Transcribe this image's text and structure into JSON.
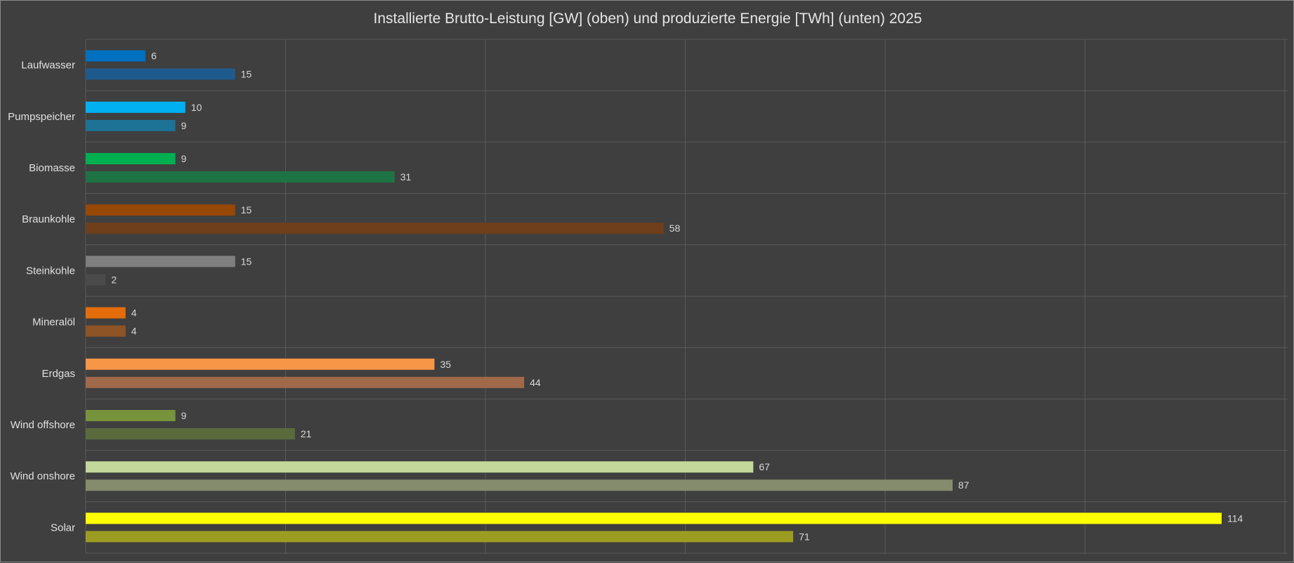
{
  "chart_data": {
    "type": "bar",
    "orientation": "horizontal",
    "title": "Installierte Brutto-Leistung [GW] (oben) und produzierte Energie [TWh] (unten) 2025",
    "xlabel": "",
    "ylabel": "",
    "xlim": [
      0,
      120
    ],
    "grid": true,
    "legend": "none",
    "categories": [
      "Laufwasser",
      "Pumpspeicher",
      "Biomasse",
      "Braunkohle",
      "Steinkohle",
      "Mineralöl",
      "Erdgas",
      "Wind offshore",
      "Wind onshore",
      "Solar"
    ],
    "series": [
      {
        "values": [
          6,
          10,
          9,
          15,
          15,
          4,
          35,
          9,
          67,
          114
        ],
        "colors": [
          "#0070c0",
          "#00b0f0",
          "#00b050",
          "#974706",
          "#7f7f7f",
          "#e46c0a",
          "#f79646",
          "#77933c",
          "#c4d79b",
          "#ffff00"
        ]
      },
      {
        "values": [
          15,
          9,
          31,
          58,
          2,
          4,
          44,
          21,
          87,
          71
        ],
        "colors": [
          "#1f5a8c",
          "#1c7396",
          "#1e7345",
          "#6e3f1a",
          "#4a4a4a",
          "#8e5426",
          "#a0694a",
          "#5a6a3c",
          "#858c6e",
          "#9c9c22"
        ]
      }
    ]
  }
}
